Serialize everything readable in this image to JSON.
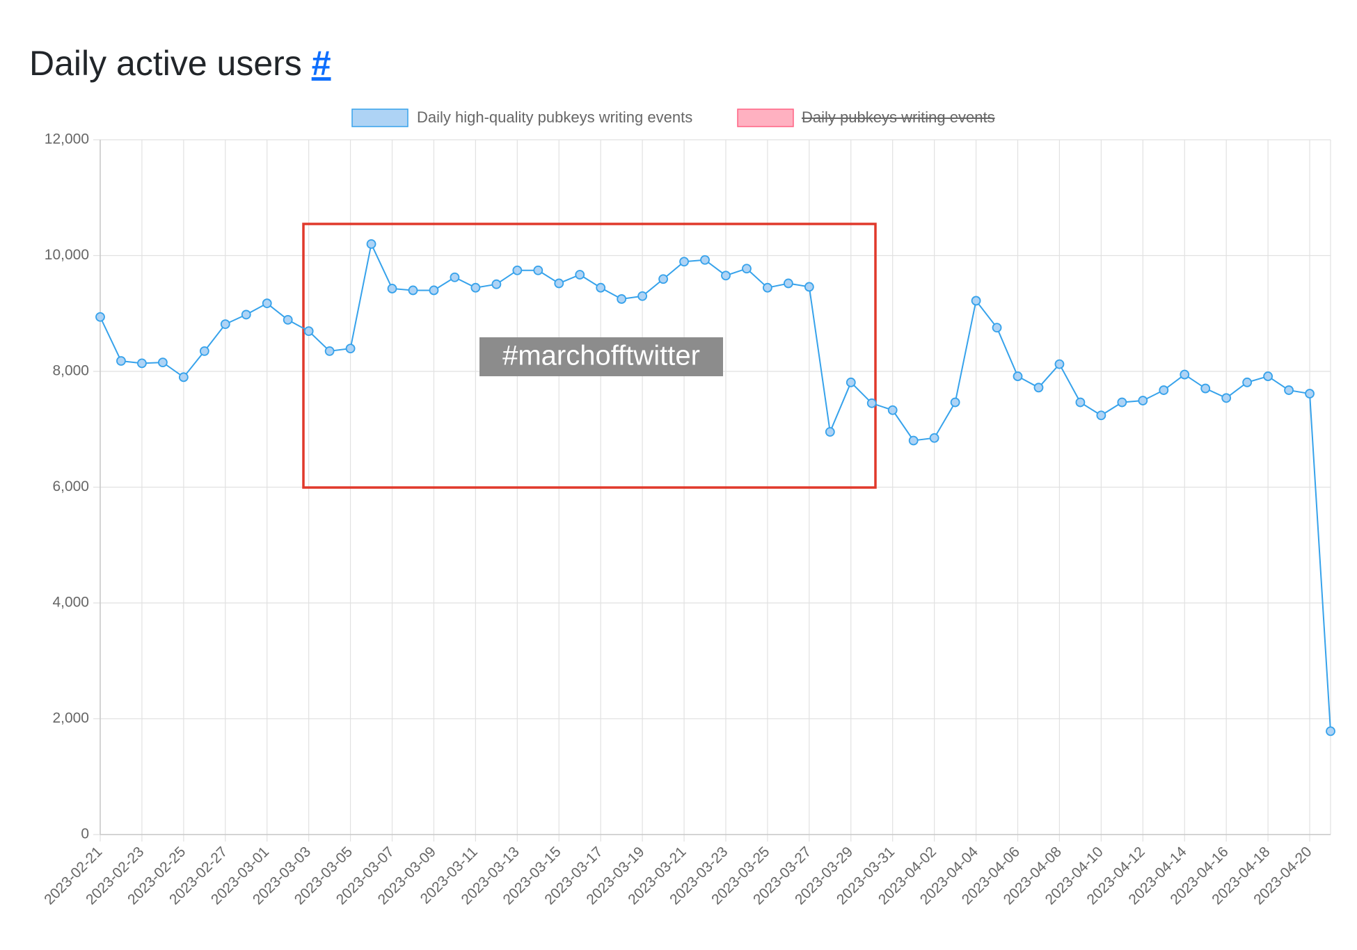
{
  "chart_data": {
    "type": "line",
    "title": "Daily active users",
    "title_link": "#",
    "annotation": "#marchofftwitter",
    "categories": [
      "2023-02-21",
      null,
      "2023-02-23",
      null,
      "2023-02-25",
      null,
      "2023-02-27",
      null,
      "2023-03-01",
      null,
      "2023-03-03",
      null,
      "2023-03-05",
      null,
      "2023-03-07",
      null,
      "2023-03-09",
      null,
      "2023-03-11",
      null,
      "2023-03-13",
      null,
      "2023-03-15",
      null,
      "2023-03-17",
      null,
      "2023-03-19",
      null,
      "2023-03-21",
      null,
      "2023-03-23",
      null,
      "2023-03-25",
      null,
      "2023-03-27",
      null,
      "2023-03-29",
      null,
      "2023-03-31",
      null,
      "2023-04-02",
      null,
      "2023-04-04",
      null,
      "2023-04-06",
      null,
      "2023-04-08",
      null,
      "2023-04-10",
      null,
      "2023-04-12",
      null,
      "2023-04-14",
      null,
      "2023-04-16",
      null,
      "2023-04-18",
      null,
      "2023-04-20",
      null
    ],
    "series": [
      {
        "name": "Daily high-quality pubkeys writing events",
        "color": "#36a2eb",
        "fill": "#aed3f5",
        "values": [
          8940,
          8180,
          8140,
          8155,
          7900,
          8350,
          8815,
          8980,
          9175,
          8890,
          8695,
          8350,
          8395,
          10200,
          9430,
          9400,
          9400,
          9625,
          9445,
          9505,
          9745,
          9745,
          9520,
          9670,
          9445,
          9250,
          9300,
          9595,
          9895,
          9925,
          9655,
          9775,
          9445,
          9520,
          9460,
          6955,
          7810,
          7450,
          7330,
          6805,
          6850,
          7465,
          9220,
          8755,
          7915,
          7720,
          8125,
          7465,
          7240,
          7465,
          7495,
          7675,
          7945,
          7705,
          7540,
          7810,
          7915,
          7675,
          7615,
          1785
        ]
      },
      {
        "name": "Daily pubkeys writing events",
        "color": "#ff6384",
        "fill": "#ffb1c1",
        "hidden": true
      }
    ],
    "ylim": [
      0,
      12000
    ],
    "yticks": [
      0,
      {
        "value": 2000,
        "label": "2,000"
      },
      {
        "value": 4000,
        "label": "4,000"
      },
      {
        "value": 6000,
        "label": "6,000"
      },
      {
        "value": 8000,
        "label": "8,000"
      },
      {
        "value": 10000,
        "label": "10,000"
      },
      {
        "value": 12000,
        "label": "12,000"
      }
    ],
    "grid": true
  }
}
